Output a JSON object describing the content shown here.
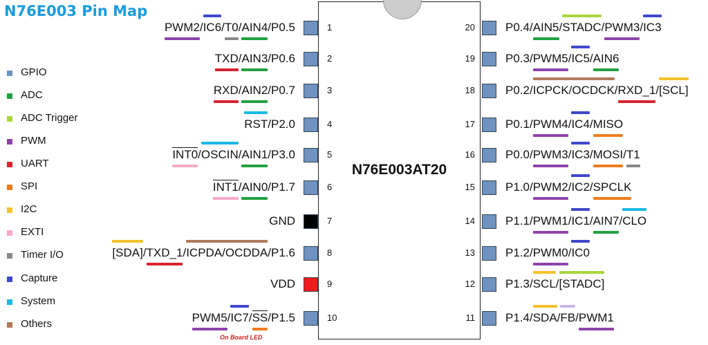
{
  "title": "N76E003 Pin Map",
  "chip_name": "N76E003AT20",
  "note": "On Board LED",
  "colors": {
    "title": "#1a9be0",
    "pad": "#6f93c0",
    "gnd": "#000000",
    "vdd": "#ee1c1c",
    "note": "#cc2222"
  },
  "legend": [
    {
      "label": "GPIO",
      "color": "#6f93c0"
    },
    {
      "label": "ADC",
      "color": "#22a040"
    },
    {
      "label": "ADC Trigger",
      "color": "#a9d63a"
    },
    {
      "label": "PWM",
      "color": "#8e44ad"
    },
    {
      "label": "UART",
      "color": "#d9232d"
    },
    {
      "label": "SPI",
      "color": "#ee7d1f"
    },
    {
      "label": "I2C",
      "color": "#f4c22b"
    },
    {
      "label": "EXTI",
      "color": "#f6a9c8"
    },
    {
      "label": "Timer I/O",
      "color": "#888888"
    },
    {
      "label": "Capture",
      "color": "#3f48cc"
    },
    {
      "label": "System",
      "color": "#1ab8e6"
    },
    {
      "label": "Others",
      "color": "#b17a5a"
    }
  ],
  "pins_left": [
    {
      "num": "1",
      "segs": [
        {
          "t": "PWM2",
          "c": "#8e44ad",
          "p": "u"
        },
        {
          "t": "/"
        },
        {
          "t": "IC6",
          "c": "#3f48cc",
          "p": "o"
        },
        {
          "t": "/"
        },
        {
          "t": "T0",
          "c": "#888888",
          "p": "u"
        },
        {
          "t": "/"
        },
        {
          "t": "AIN4",
          "c": "#22a040",
          "p": "u"
        },
        {
          "t": "/"
        },
        {
          "t": "P0.5"
        }
      ]
    },
    {
      "num": "2",
      "segs": [
        {
          "t": "TXD",
          "c": "#d9232d",
          "p": "u"
        },
        {
          "t": "/"
        },
        {
          "t": "AIN3",
          "c": "#22a040",
          "p": "u"
        },
        {
          "t": "/"
        },
        {
          "t": "P0.6"
        }
      ]
    },
    {
      "num": "3",
      "segs": [
        {
          "t": "RXD",
          "c": "#d9232d",
          "p": "u"
        },
        {
          "t": "/"
        },
        {
          "t": "AIN2",
          "c": "#22a040",
          "p": "u"
        },
        {
          "t": "/"
        },
        {
          "t": "P0.7"
        }
      ]
    },
    {
      "num": "4",
      "segs": [
        {
          "t": "RST",
          "c": "#1ab8e6",
          "p": "o"
        },
        {
          "t": "/"
        },
        {
          "t": "P2.0"
        }
      ]
    },
    {
      "num": "5",
      "segs": [
        {
          "t": "INT0",
          "c": "#f6a9c8",
          "p": "u",
          "ov": true
        },
        {
          "t": "/"
        },
        {
          "t": "OSCIN",
          "c": "#1ab8e6",
          "p": "o"
        },
        {
          "t": "/"
        },
        {
          "t": "AIN1",
          "c": "#22a040",
          "p": "u"
        },
        {
          "t": "/"
        },
        {
          "t": "P3.0"
        }
      ]
    },
    {
      "num": "6",
      "segs": [
        {
          "t": "INT1",
          "c": "#f6a9c8",
          "p": "u",
          "ov": true
        },
        {
          "t": "/"
        },
        {
          "t": "AIN0",
          "c": "#22a040",
          "p": "u"
        },
        {
          "t": "/"
        },
        {
          "t": "P1.7"
        }
      ]
    },
    {
      "num": "7",
      "segs": [
        {
          "t": "GND"
        }
      ],
      "pad": "gnd"
    },
    {
      "num": "8",
      "segs": [
        {
          "t": "[SDA]",
          "c": "#f4c22b",
          "p": "o"
        },
        {
          "t": "/"
        },
        {
          "t": "TXD_1",
          "c": "#d9232d",
          "p": "u"
        },
        {
          "t": "/"
        },
        {
          "t": "ICPDA/OCDDA",
          "c": "#b17a5a",
          "p": "o"
        },
        {
          "t": "/"
        },
        {
          "t": "P1.6"
        }
      ]
    },
    {
      "num": "9",
      "segs": [
        {
          "t": "VDD"
        }
      ],
      "pad": "vdd"
    },
    {
      "num": "10",
      "segs": [
        {
          "t": "PWM5",
          "c": "#8e44ad",
          "p": "u"
        },
        {
          "t": "/"
        },
        {
          "t": "IC7",
          "c": "#3f48cc",
          "p": "o"
        },
        {
          "t": "/"
        },
        {
          "t": "SS",
          "c": "#ee7d1f",
          "p": "u",
          "ov": true
        },
        {
          "t": "/"
        },
        {
          "t": "P1.5"
        }
      ]
    }
  ],
  "pins_right": [
    {
      "num": "20",
      "segs": [
        {
          "t": "P0.4"
        },
        {
          "t": "/"
        },
        {
          "t": "AIN5",
          "c": "#22a040",
          "p": "u"
        },
        {
          "t": "/"
        },
        {
          "t": "STADC",
          "c": "#a9d63a",
          "p": "o"
        },
        {
          "t": "/"
        },
        {
          "t": "PWM3",
          "c": "#8e44ad",
          "p": "u"
        },
        {
          "t": "/"
        },
        {
          "t": "IC3",
          "c": "#3f48cc",
          "p": "o"
        }
      ]
    },
    {
      "num": "19",
      "segs": [
        {
          "t": "P0.3"
        },
        {
          "t": "/"
        },
        {
          "t": "PWM5",
          "c": "#8e44ad",
          "p": "u"
        },
        {
          "t": "/"
        },
        {
          "t": "IC5",
          "c": "#3f48cc",
          "p": "o"
        },
        {
          "t": "/"
        },
        {
          "t": "AIN6",
          "c": "#22a040",
          "p": "u"
        }
      ]
    },
    {
      "num": "18",
      "segs": [
        {
          "t": "P0.2"
        },
        {
          "t": "/"
        },
        {
          "t": "ICPCK/OCDCK",
          "c": "#b17a5a",
          "p": "o"
        },
        {
          "t": "/"
        },
        {
          "t": "RXD_1",
          "c": "#d9232d",
          "p": "u"
        },
        {
          "t": "/"
        },
        {
          "t": "[SCL]",
          "c": "#f4c22b",
          "p": "o"
        }
      ]
    },
    {
      "num": "17",
      "segs": [
        {
          "t": "P0.1"
        },
        {
          "t": "/"
        },
        {
          "t": "PWM4",
          "c": "#8e44ad",
          "p": "u"
        },
        {
          "t": "/"
        },
        {
          "t": "IC4",
          "c": "#3f48cc",
          "p": "o"
        },
        {
          "t": "/"
        },
        {
          "t": "MISO",
          "c": "#ee7d1f",
          "p": "u"
        }
      ]
    },
    {
      "num": "16",
      "segs": [
        {
          "t": "P0.0"
        },
        {
          "t": "/"
        },
        {
          "t": "PWM3",
          "c": "#8e44ad",
          "p": "u"
        },
        {
          "t": "/"
        },
        {
          "t": "IC3",
          "c": "#3f48cc",
          "p": "o"
        },
        {
          "t": "/"
        },
        {
          "t": "MOSI",
          "c": "#ee7d1f",
          "p": "u"
        },
        {
          "t": "/"
        },
        {
          "t": "T1",
          "c": "#888888",
          "p": "u"
        }
      ]
    },
    {
      "num": "15",
      "segs": [
        {
          "t": "P1.0"
        },
        {
          "t": "/"
        },
        {
          "t": "PWM2",
          "c": "#8e44ad",
          "p": "u"
        },
        {
          "t": "/"
        },
        {
          "t": "IC2",
          "c": "#3f48cc",
          "p": "o"
        },
        {
          "t": "/"
        },
        {
          "t": "SPCLK",
          "c": "#ee7d1f",
          "p": "u"
        }
      ]
    },
    {
      "num": "14",
      "segs": [
        {
          "t": "P1.1"
        },
        {
          "t": "/"
        },
        {
          "t": "PWM1",
          "c": "#8e44ad",
          "p": "u"
        },
        {
          "t": "/"
        },
        {
          "t": "IC1",
          "c": "#3f48cc",
          "p": "o"
        },
        {
          "t": "/"
        },
        {
          "t": "AIN7",
          "c": "#22a040",
          "p": "u"
        },
        {
          "t": "/"
        },
        {
          "t": "CLO",
          "c": "#1ab8e6",
          "p": "o"
        }
      ]
    },
    {
      "num": "13",
      "segs": [
        {
          "t": "P1.2"
        },
        {
          "t": "/"
        },
        {
          "t": "PWM0",
          "c": "#8e44ad",
          "p": "u"
        },
        {
          "t": "/"
        },
        {
          "t": "IC0",
          "c": "#3f48cc",
          "p": "o"
        }
      ]
    },
    {
      "num": "12",
      "segs": [
        {
          "t": "P1.3"
        },
        {
          "t": "/"
        },
        {
          "t": "SCL",
          "c": "#f4c22b",
          "p": "o"
        },
        {
          "t": "/"
        },
        {
          "t": "[STADC]",
          "c": "#a9d63a",
          "p": "o"
        }
      ]
    },
    {
      "num": "11",
      "segs": [
        {
          "t": "P1.4"
        },
        {
          "t": "/"
        },
        {
          "t": "SDA",
          "c": "#f4c22b",
          "p": "o"
        },
        {
          "t": "/"
        },
        {
          "t": "FB",
          "c": "#c8b8e8",
          "p": "o"
        },
        {
          "t": "/"
        },
        {
          "t": "PWM1",
          "c": "#8e44ad",
          "p": "u"
        }
      ]
    }
  ]
}
